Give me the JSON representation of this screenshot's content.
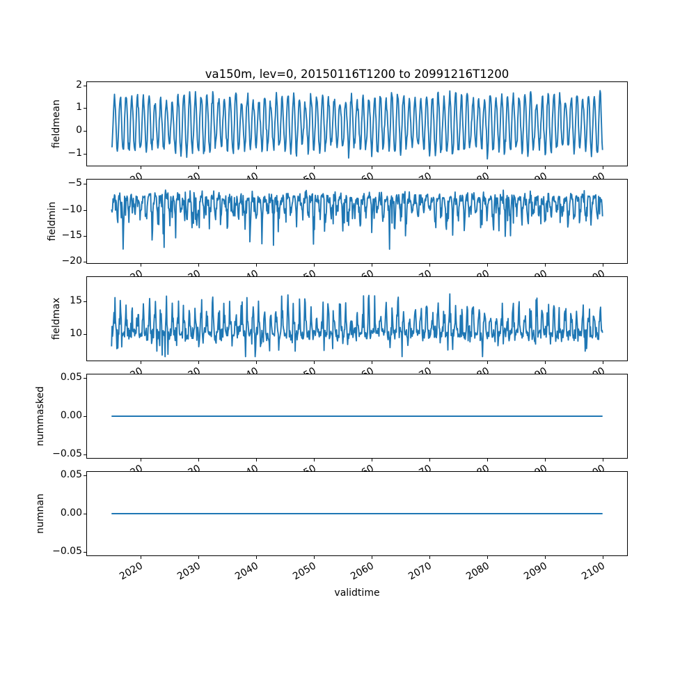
{
  "figure": {
    "background": "#ffffff",
    "axis_color": "#000000"
  },
  "chart_data": {
    "type": "line",
    "title": "va150m, lev=0, 20150116T1200 to 20991216T1200",
    "xlabel": "validtime",
    "line_color": "#1f77b4",
    "legend": "none",
    "grid": false,
    "x_start_year": 2015,
    "x_end_year": 2100,
    "points_per_year": 12,
    "x_first_point": 2015.042,
    "x_last_point": 2099.958,
    "xlim": [
      2010.79,
      2104.21
    ],
    "xticks": {
      "values": [
        2020,
        2030,
        2040,
        2050,
        2060,
        2070,
        2080,
        2090,
        2100
      ],
      "labels": [
        "2020",
        "2030",
        "2040",
        "2050",
        "2060",
        "2070",
        "2080",
        "2090",
        "2100"
      ],
      "rotation_deg": -30
    },
    "subplots": [
      {
        "name": "fieldmean",
        "ylabel": "fieldmean",
        "ylim": [
          -1.52,
          2.14
        ],
        "yticks": {
          "values": [
            2,
            1,
            0,
            -1
          ],
          "labels": [
            "2",
            "1",
            "0",
            "−1"
          ]
        },
        "pattern": "annual sinusoidal cycle, monthly samples",
        "approx_min": -1.35,
        "approx_max": 1.97,
        "approx_center": 0.33,
        "generator": {
          "mode": "seasonal",
          "seed": 11,
          "base": 0.33,
          "amp": 1.12,
          "amp_var": 0.36,
          "noise": 0.12,
          "clip": [
            -1.35,
            1.97
          ]
        }
      },
      {
        "name": "fieldmin",
        "ylabel": "fieldmin",
        "ylim": [
          -20.25,
          -4.15
        ],
        "yticks": {
          "values": [
            -5,
            -10,
            -15,
            -20
          ],
          "labels": [
            "−5",
            "−10",
            "−15",
            "−20"
          ]
        },
        "pattern": "noisy band near -8 with deep winter spikes down to -19.5",
        "approx_min": -19.5,
        "approx_max": -4.9,
        "generator": {
          "mode": "spiky",
          "seed": 22,
          "base": -7.25,
          "jitter": 1.0,
          "dir": -1,
          "spike_base": 2.1,
          "spike_var": 5.4,
          "rare_p": 0.07,
          "rare_amp": 2.2,
          "noise": 0.55,
          "clip": [
            -19.5,
            -4.9
          ]
        }
      },
      {
        "name": "fieldmax",
        "ylabel": "fieldmax",
        "ylim": [
          5.9,
          18.8
        ],
        "yticks": {
          "values": [
            15,
            10
          ],
          "labels": [
            "15",
            "10"
          ]
        },
        "pattern": "noisy band near 10 with summer spikes up to 18.2",
        "approx_min": 6.5,
        "approx_max": 18.2,
        "generator": {
          "mode": "spiky",
          "seed": 33,
          "base": 9.45,
          "jitter": 1.0,
          "dir": 1,
          "spike_base": 1.9,
          "spike_var": 5.6,
          "rare_p": 0.05,
          "rare_amp": 1.6,
          "noise": 0.5,
          "clip": [
            6.5,
            18.2
          ]
        }
      },
      {
        "name": "nummasked",
        "ylabel": "nummasked",
        "ylim": [
          -0.055,
          0.055
        ],
        "yticks": {
          "values": [
            0.05,
            0,
            -0.05
          ],
          "labels": [
            "0.05",
            "0.00",
            "−0.05"
          ]
        },
        "pattern": "constant zero",
        "generator": {
          "mode": "constant",
          "value": 0
        }
      },
      {
        "name": "numnan",
        "ylabel": "numnan",
        "ylim": [
          -0.055,
          0.055
        ],
        "yticks": {
          "values": [
            0.05,
            0,
            -0.05
          ],
          "labels": [
            "0.05",
            "0.00",
            "−0.05"
          ]
        },
        "pattern": "constant zero",
        "generator": {
          "mode": "constant",
          "value": 0
        }
      }
    ]
  }
}
